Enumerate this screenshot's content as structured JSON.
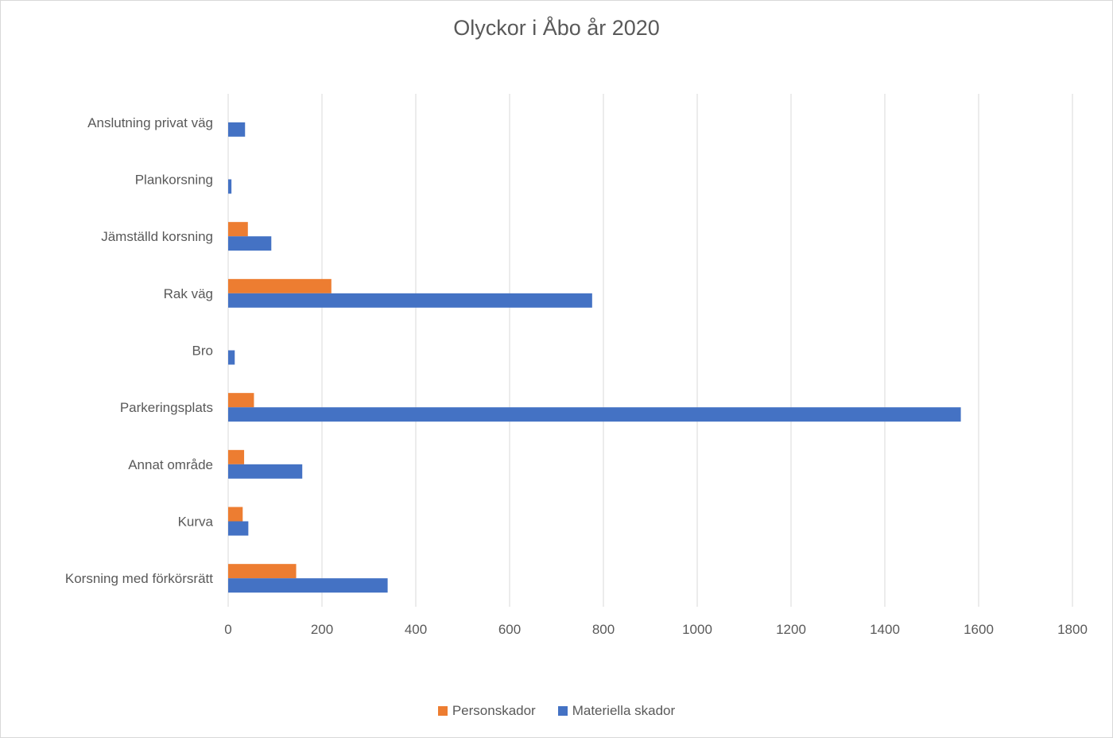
{
  "chart_data": {
    "type": "bar",
    "orientation": "horizontal",
    "title": "Olyckor i Åbo år 2020",
    "categories": [
      "Korsning med förkörsrätt",
      "Kurva",
      "Annat område",
      "Parkeringsplats",
      "Bro",
      "Rak väg",
      "Jämställd korsning",
      "Plankorsning",
      "Anslutning privat väg"
    ],
    "series": [
      {
        "name": "Personskador",
        "color": "#ed7d31",
        "values": [
          145,
          31,
          34,
          55,
          0,
          220,
          42,
          0,
          0
        ]
      },
      {
        "name": "Materiella skador",
        "color": "#4472c4",
        "values": [
          340,
          43,
          158,
          1562,
          14,
          776,
          92,
          7,
          36
        ]
      }
    ],
    "xlim": [
      0,
      1800
    ],
    "xticks": [
      0,
      200,
      400,
      600,
      800,
      1000,
      1200,
      1400,
      1600,
      1800
    ],
    "grid": true,
    "legend_position": "bottom",
    "xlabel": "",
    "ylabel": ""
  }
}
